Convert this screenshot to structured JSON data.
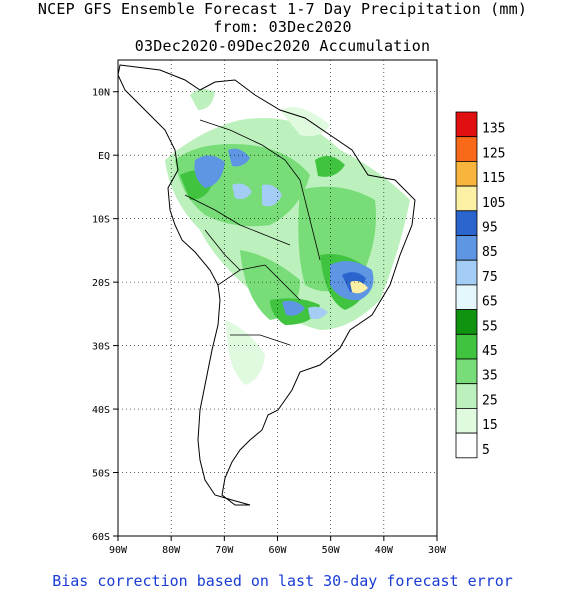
{
  "title": {
    "line1": "NCEP GFS Ensemble Forecast 1-7 Day Precipitation (mm)",
    "line2": "from: 03Dec2020",
    "line3": "03Dec2020-09Dec2020 Accumulation"
  },
  "footer": "Bias correction based on last 30-day forecast error",
  "map": {
    "lat_labels": [
      "10N",
      "EQ",
      "10S",
      "20S",
      "30S",
      "40S",
      "50S",
      "60S"
    ],
    "lon_labels": [
      "90W",
      "80W",
      "70W",
      "60W",
      "50W",
      "40W",
      "30W"
    ],
    "lat_range": [
      -60,
      15
    ],
    "lon_range": [
      -90,
      -30
    ],
    "gridlines": true
  },
  "legend": {
    "labels": [
      "135",
      "125",
      "115",
      "105",
      "95",
      "85",
      "75",
      "65",
      "55",
      "45",
      "35",
      "25",
      "15",
      "5"
    ],
    "colors": [
      "#e01010",
      "#f86a1a",
      "#f8b43c",
      "#fcf0a4",
      "#2b64cc",
      "#5e96e4",
      "#a4cdf5",
      "#e4f8fc",
      "#109410",
      "#40c440",
      "#78dc78",
      "#bcf0bc",
      "#e0fae0",
      "#ffffff"
    ]
  }
}
